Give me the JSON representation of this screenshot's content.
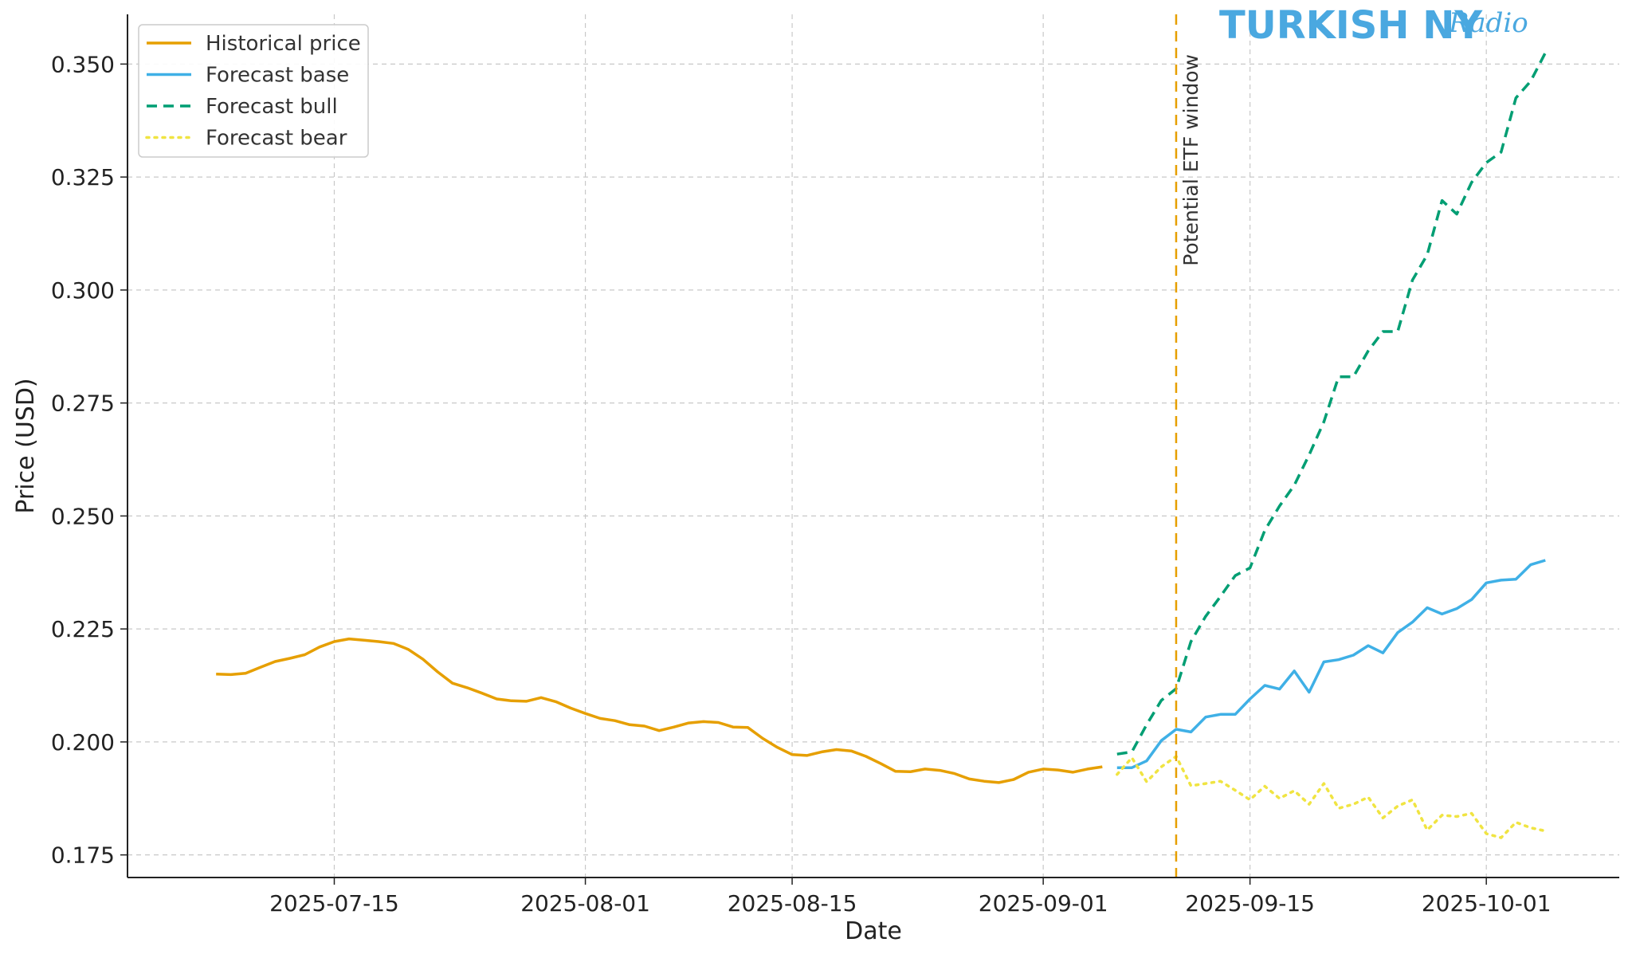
{
  "chart_data": {
    "type": "line",
    "title": "",
    "xlabel": "Date",
    "ylabel": "Price (USD)",
    "xlim": [
      "2025-07-01",
      "2025-10-10"
    ],
    "ylim": [
      0.17,
      0.361
    ],
    "x_ticks": [
      "2025-07-15",
      "2025-08-01",
      "2025-08-15",
      "2025-09-01",
      "2025-09-15",
      "2025-10-01"
    ],
    "y_ticks": [
      0.175,
      0.2,
      0.225,
      0.25,
      0.275,
      0.3,
      0.325,
      0.35
    ],
    "y_tick_labels": [
      "0.175",
      "0.200",
      "0.225",
      "0.250",
      "0.275",
      "0.300",
      "0.325",
      "0.350"
    ],
    "grid": true,
    "legend_position": "top-left",
    "series": [
      {
        "name": "Historical price",
        "color": "#e69f00",
        "style": "solid",
        "x": [
          "2025-07-07",
          "2025-07-08",
          "2025-07-09",
          "2025-07-10",
          "2025-07-11",
          "2025-07-12",
          "2025-07-13",
          "2025-07-14",
          "2025-07-15",
          "2025-07-16",
          "2025-07-17",
          "2025-07-18",
          "2025-07-19",
          "2025-07-20",
          "2025-07-21",
          "2025-07-22",
          "2025-07-23",
          "2025-07-24",
          "2025-07-25",
          "2025-07-26",
          "2025-07-27",
          "2025-07-28",
          "2025-07-29",
          "2025-07-30",
          "2025-07-31",
          "2025-08-01",
          "2025-08-02",
          "2025-08-03",
          "2025-08-04",
          "2025-08-05",
          "2025-08-06",
          "2025-08-07",
          "2025-08-08",
          "2025-08-09",
          "2025-08-10",
          "2025-08-11",
          "2025-08-12",
          "2025-08-13",
          "2025-08-14",
          "2025-08-15",
          "2025-08-16",
          "2025-08-17",
          "2025-08-18",
          "2025-08-19",
          "2025-08-20",
          "2025-08-21",
          "2025-08-22",
          "2025-08-23",
          "2025-08-24",
          "2025-08-25",
          "2025-08-26",
          "2025-08-27",
          "2025-08-28",
          "2025-08-29",
          "2025-08-30",
          "2025-08-31",
          "2025-09-01",
          "2025-09-02",
          "2025-09-03",
          "2025-09-04",
          "2025-09-05"
        ],
        "values": [
          0.215,
          0.2149,
          0.2152,
          0.2165,
          0.2178,
          0.2185,
          0.2193,
          0.221,
          0.2222,
          0.2228,
          0.2225,
          0.2222,
          0.2218,
          0.2205,
          0.2183,
          0.2155,
          0.213,
          0.212,
          0.2108,
          0.2095,
          0.2091,
          0.209,
          0.2098,
          0.2089,
          0.2075,
          0.2063,
          0.2052,
          0.2047,
          0.2038,
          0.2035,
          0.2025,
          0.2033,
          0.2042,
          0.2045,
          0.2043,
          0.2033,
          0.2032,
          0.2008,
          0.1988,
          0.1972,
          0.197,
          0.1978,
          0.1983,
          0.198,
          0.1968,
          0.1952,
          0.1935,
          0.1934,
          0.194,
          0.1937,
          0.193,
          0.1918,
          0.1913,
          0.191,
          0.1917,
          0.1933,
          0.194,
          0.1938,
          0.1933,
          0.194,
          0.1945
        ]
      },
      {
        "name": "Forecast base",
        "color": "#3fb0e6",
        "style": "solid",
        "x": [
          "2025-09-06",
          "2025-09-07",
          "2025-09-08",
          "2025-09-09",
          "2025-09-10",
          "2025-09-11",
          "2025-09-12",
          "2025-09-13",
          "2025-09-14",
          "2025-09-15",
          "2025-09-16",
          "2025-09-17",
          "2025-09-18",
          "2025-09-19",
          "2025-09-20",
          "2025-09-21",
          "2025-09-22",
          "2025-09-23",
          "2025-09-24",
          "2025-09-25",
          "2025-09-26",
          "2025-09-27",
          "2025-09-28",
          "2025-09-29",
          "2025-09-30",
          "2025-10-01",
          "2025-10-02",
          "2025-10-03",
          "2025-10-04",
          "2025-10-05"
        ],
        "values": [
          0.1943,
          0.1943,
          0.1958,
          0.2003,
          0.2028,
          0.2022,
          0.2055,
          0.2061,
          0.2061,
          0.2095,
          0.2125,
          0.2117,
          0.2157,
          0.211,
          0.2177,
          0.2182,
          0.2192,
          0.2213,
          0.2197,
          0.2242,
          0.2265,
          0.2297,
          0.2283,
          0.2295,
          0.2315,
          0.2352,
          0.2358,
          0.236,
          0.2392,
          0.2402
        ]
      },
      {
        "name": "Forecast bull",
        "color": "#009e73",
        "style": "dashed",
        "x": [
          "2025-09-06",
          "2025-09-07",
          "2025-09-08",
          "2025-09-09",
          "2025-09-10",
          "2025-09-11",
          "2025-09-12",
          "2025-09-13",
          "2025-09-14",
          "2025-09-15",
          "2025-09-16",
          "2025-09-17",
          "2025-09-18",
          "2025-09-19",
          "2025-09-20",
          "2025-09-21",
          "2025-09-22",
          "2025-09-23",
          "2025-09-24",
          "2025-09-25",
          "2025-09-26",
          "2025-09-27",
          "2025-09-28",
          "2025-09-29",
          "2025-09-30",
          "2025-10-01",
          "2025-10-02",
          "2025-10-03",
          "2025-10-04",
          "2025-10-05"
        ],
        "values": [
          0.1973,
          0.1978,
          0.2038,
          0.2092,
          0.2118,
          0.2222,
          0.2278,
          0.2322,
          0.2368,
          0.2385,
          0.2468,
          0.2522,
          0.2568,
          0.2635,
          0.2708,
          0.2808,
          0.2808,
          0.2865,
          0.2908,
          0.2908,
          0.3022,
          0.3078,
          0.3198,
          0.3168,
          0.3238,
          0.3282,
          0.3305,
          0.3425,
          0.3462,
          0.3525
        ]
      },
      {
        "name": "Forecast bear",
        "color": "#f0e442",
        "style": "dotted",
        "x": [
          "2025-09-06",
          "2025-09-07",
          "2025-09-08",
          "2025-09-09",
          "2025-09-10",
          "2025-09-11",
          "2025-09-12",
          "2025-09-13",
          "2025-09-14",
          "2025-09-15",
          "2025-09-16",
          "2025-09-17",
          "2025-09-18",
          "2025-09-19",
          "2025-09-20",
          "2025-09-21",
          "2025-09-22",
          "2025-09-23",
          "2025-09-24",
          "2025-09-25",
          "2025-09-26",
          "2025-09-27",
          "2025-09-28",
          "2025-09-29",
          "2025-09-30",
          "2025-10-01",
          "2025-10-02",
          "2025-10-03",
          "2025-10-04",
          "2025-10-05"
        ],
        "values": [
          0.1928,
          0.1965,
          0.1912,
          0.1945,
          0.1968,
          0.1903,
          0.1908,
          0.1913,
          0.1893,
          0.1872,
          0.1902,
          0.1875,
          0.1892,
          0.1862,
          0.1908,
          0.1853,
          0.1862,
          0.1878,
          0.1832,
          0.1858,
          0.1872,
          0.1805,
          0.1838,
          0.1835,
          0.1842,
          0.1797,
          0.1788,
          0.1822,
          0.181,
          0.1803
        ]
      }
    ],
    "annotations": [
      {
        "type": "vline",
        "x": "2025-09-10",
        "color": "#e69f00",
        "style": "dashed",
        "label": "Potential ETF window"
      }
    ]
  },
  "watermark": {
    "main": "TURKISH NY",
    "script": "Radio",
    "color": "#4aa8e0"
  }
}
